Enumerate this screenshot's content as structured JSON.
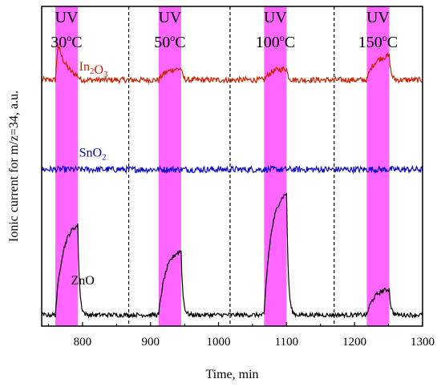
{
  "chart_data": {
    "type": "line",
    "xlabel": "Time, min",
    "ylabel": "Ionic current for m/z=34, a.u.",
    "xlim": [
      740,
      1300
    ],
    "xticks": [
      800,
      900,
      1000,
      1100,
      1200,
      1300
    ],
    "ylim": [
      0,
      100
    ],
    "y_tick_labels": "none",
    "uv_bands": [
      {
        "label_top": "UV",
        "temp_base": "30",
        "temp_unit": "C",
        "deg": "o",
        "x_start": 760,
        "x_end": 793,
        "color": "#ff66ff"
      },
      {
        "label_top": "UV",
        "temp_base": "50",
        "temp_unit": "C",
        "deg": "o",
        "x_start": 912,
        "x_end": 945,
        "color": "#ff66ff"
      },
      {
        "label_top": "UV",
        "temp_base": "100",
        "temp_unit": "C",
        "deg": "o",
        "x_start": 1067,
        "x_end": 1100,
        "color": "#ff66ff"
      },
      {
        "label_top": "UV",
        "temp_base": "150",
        "temp_unit": "C",
        "deg": "o",
        "x_start": 1218,
        "x_end": 1251,
        "color": "#ff66ff"
      }
    ],
    "dividers": [
      868,
      1017,
      1170
    ],
    "series": [
      {
        "name_parts": [
          [
            "In",
            "2"
          ],
          [
            "O",
            "3"
          ]
        ],
        "label_anchor_xy": [
          795,
          80
        ],
        "color": "#cc2200",
        "baseline": 77,
        "noise": 0.9,
        "peaks": [
          {
            "x_on": 760,
            "x_off": 793,
            "height": 11,
            "shape": "spike"
          },
          {
            "x_on": 912,
            "x_off": 945,
            "height": 3.5,
            "shape": "rise"
          },
          {
            "x_on": 1067,
            "x_off": 1100,
            "height": 3.5,
            "shape": "rise"
          },
          {
            "x_on": 1218,
            "x_off": 1251,
            "height": 7.5,
            "shape": "rise"
          }
        ]
      },
      {
        "name_parts": [
          [
            "SnO",
            "2"
          ]
        ],
        "label_anchor_xy": [
          795,
          53
        ],
        "color": "#0a0acc",
        "baseline": 49,
        "noise": 1.0,
        "peaks": []
      },
      {
        "name_parts": [
          [
            "ZnO",
            ""
          ]
        ],
        "label_anchor_xy": [
          783,
          13
        ],
        "color": "#000000",
        "baseline": 3.5,
        "noise": 0.7,
        "peaks": [
          {
            "x_on": 760,
            "x_off": 793,
            "height": 28,
            "shape": "rise"
          },
          {
            "x_on": 912,
            "x_off": 945,
            "height": 20,
            "shape": "rise"
          },
          {
            "x_on": 1067,
            "x_off": 1100,
            "height": 38,
            "shape": "rise"
          },
          {
            "x_on": 1218,
            "x_off": 1251,
            "height": 8,
            "shape": "rise"
          }
        ]
      }
    ]
  }
}
